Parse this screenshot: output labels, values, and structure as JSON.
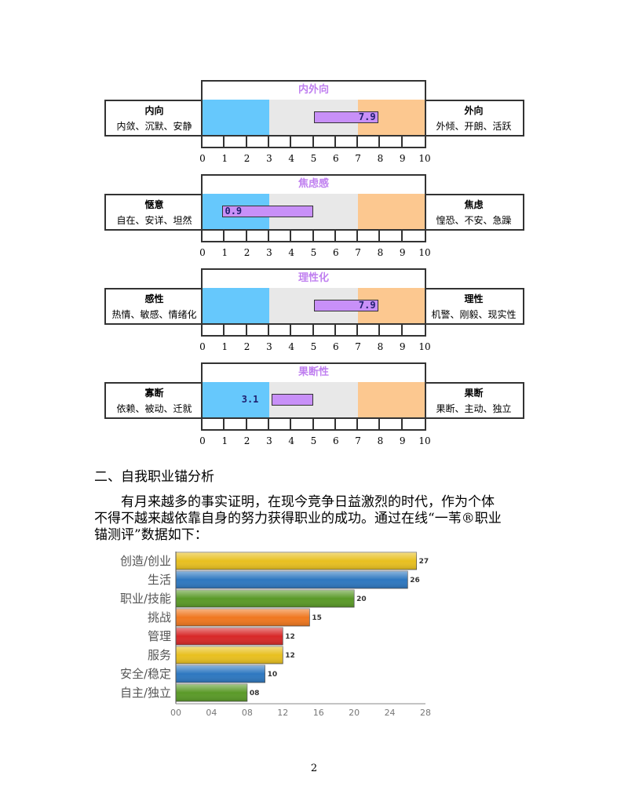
{
  "personality_scales": [
    {
      "title": "内外向",
      "left_title": "内向",
      "left_desc": "内敛、沉默、安静",
      "right_title": "外向",
      "right_desc": "外倾、开朗、活跃",
      "value": 7.9,
      "value_label": "7.9"
    },
    {
      "title": "焦虑感",
      "left_title": "惬意",
      "left_desc": "自在、安详、坦然",
      "right_title": "焦虑",
      "right_desc": "惶恐、不安、急躁",
      "value": 0.9,
      "value_label": "0.9"
    },
    {
      "title": "理性化",
      "left_title": "感性",
      "left_desc": "热情、敏感、情绪化",
      "right_title": "理性",
      "right_desc": "机警、刚毅、现实性",
      "value": 7.9,
      "value_label": "7.9"
    },
    {
      "title": "果断性",
      "left_title": "寡断",
      "left_desc": "依赖、被动、迁就",
      "right_title": "果断",
      "right_desc": "果断、主动、独立",
      "value": 3.1,
      "value_label": "3.1"
    }
  ],
  "scale_ticks": [
    "0",
    "1",
    "2",
    "3",
    "4",
    "5",
    "6",
    "7",
    "8",
    "9",
    "10"
  ],
  "scale_colors": {
    "low": "#66c8fc",
    "mid": "#e8e8e8",
    "high": "#fcc890",
    "bar": "#c890f8",
    "title": "#c080f0"
  },
  "section_heading": "二、自我职业锚分析",
  "paragraph_lines": [
    "有月来越多的事实证明，在现今竞争日益激烈的时代，作为个体",
    "不得不越来越依靠自身的努力获得职业的成功。通过在线“一苇®职业",
    "锚测评”数据如下："
  ],
  "chart_data": {
    "type": "bar",
    "orientation": "horizontal",
    "categories": [
      "创造/创业",
      "生活",
      "职业/技能",
      "挑战",
      "管理",
      "服务",
      "安全/稳定",
      "自主/独立"
    ],
    "values": [
      27,
      26,
      20,
      15,
      12,
      12,
      10,
      8
    ],
    "data_labels": [
      "27",
      "26",
      "20",
      "15",
      "12",
      "12",
      "10",
      "08"
    ],
    "colors": [
      "#e8c020",
      "#2e78c0",
      "#5a9a28",
      "#f07820",
      "#d82828",
      "#e8c020",
      "#2e78c0",
      "#5a9a28"
    ],
    "xlim": [
      0,
      28
    ],
    "xticks": [
      "00",
      "04",
      "08",
      "12",
      "16",
      "20",
      "24",
      "28"
    ]
  },
  "page_number": "2"
}
